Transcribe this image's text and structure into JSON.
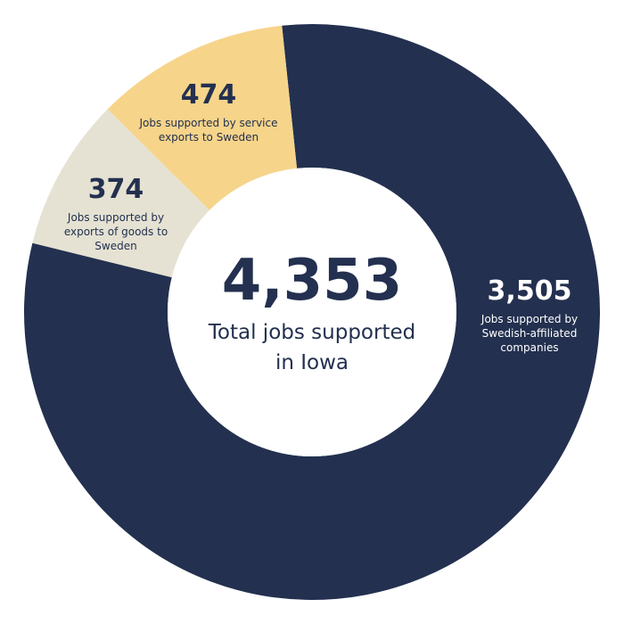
{
  "chart_data": {
    "type": "donut",
    "categories": [
      "Jobs supported by Swedish-affiliated companies",
      "Jobs supported by exports of goods to Sweden",
      "Jobs supported by service exports to Sweden"
    ],
    "values": [
      3505,
      374,
      474
    ],
    "value_labels": [
      "3,505",
      "374",
      "474"
    ],
    "colors": [
      "#23304f",
      "#e5e2d3",
      "#f6d48a"
    ],
    "total": {
      "value": 4353,
      "label": "4,353"
    },
    "total_caption": "Total jobs supported in Iowa"
  }
}
